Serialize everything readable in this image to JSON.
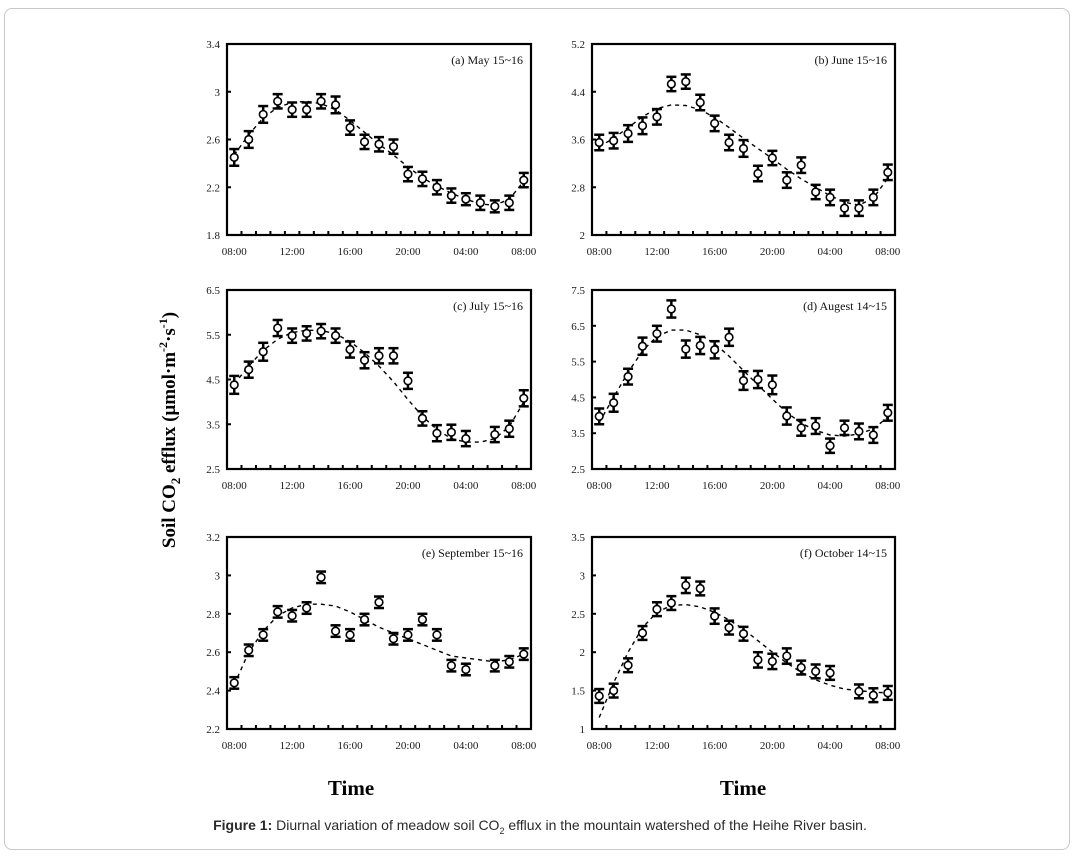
{
  "figure": {
    "caption_label": "Figure 1:",
    "caption_text_pre": " Diurnal variation of meadow soil CO",
    "caption_sub": "2",
    "caption_text_post": " efflux in the mountain watershed of the Heihe River basin.",
    "ylabel_main": "Soil CO",
    "ylabel_sub": "2",
    "ylabel_rest": " efflux (μmol·m",
    "ylabel_sup1": "-2",
    "ylabel_mid": "·s",
    "ylabel_sup2": "-1",
    "ylabel_end": ")",
    "xlabel_left": "Time",
    "xlabel_right": "Time"
  },
  "chart_data": [
    {
      "type": "scatter",
      "title": "(a) May 15~16",
      "xlabel": "Time",
      "ylabel": "Soil CO2 efflux (μmol·m-2·s-1)",
      "x_tick_labels": [
        "08:00",
        "12:00",
        "16:00",
        "20:00",
        "04:00",
        "08:00"
      ],
      "n_points": 21,
      "ylim": [
        1.8,
        3.4
      ],
      "yticks": [
        1.8,
        2.2,
        2.6,
        3,
        3.4
      ],
      "ytick_labels": [
        "1.8",
        "2.2",
        "2.6",
        "3",
        "3.4"
      ],
      "series": [
        {
          "name": "observed",
          "marker": "open-circle",
          "error_bars": true,
          "values": [
            2.45,
            2.6,
            2.81,
            2.92,
            2.85,
            2.85,
            2.92,
            2.89,
            2.7,
            2.58,
            2.56,
            2.54,
            2.31,
            2.27,
            2.2,
            2.13,
            2.1,
            2.07,
            2.04,
            2.07,
            2.26
          ],
          "errors": [
            0.07,
            0.07,
            0.07,
            0.06,
            0.06,
            0.06,
            0.06,
            0.07,
            0.06,
            0.06,
            0.06,
            0.06,
            0.06,
            0.06,
            0.06,
            0.06,
            0.05,
            0.06,
            0.05,
            0.06,
            0.06
          ]
        },
        {
          "name": "fit",
          "style": "dashed",
          "values": [
            2.47,
            2.64,
            2.78,
            2.87,
            2.91,
            2.92,
            2.9,
            2.85,
            2.76,
            2.66,
            2.56,
            2.47,
            2.37,
            2.28,
            2.21,
            2.15,
            2.1,
            2.06,
            2.05,
            2.1,
            2.25
          ]
        }
      ]
    },
    {
      "type": "scatter",
      "title": "(b) June 15~16",
      "xlabel": "Time",
      "ylabel": "Soil CO2 efflux (μmol·m-2·s-1)",
      "x_tick_labels": [
        "08:00",
        "12:00",
        "16:00",
        "20:00",
        "04:00",
        "08:00"
      ],
      "n_points": 21,
      "ylim": [
        2,
        5.2
      ],
      "yticks": [
        2,
        2.8,
        3.6,
        4.4,
        5.2
      ],
      "ytick_labels": [
        "2",
        "2.8",
        "3.6",
        "4.4",
        "5.2"
      ],
      "series": [
        {
          "name": "observed",
          "marker": "open-circle",
          "error_bars": true,
          "values": [
            3.55,
            3.58,
            3.7,
            3.83,
            3.98,
            4.53,
            4.57,
            4.22,
            3.87,
            3.55,
            3.45,
            3.03,
            3.29,
            2.92,
            3.17,
            2.72,
            2.63,
            2.45,
            2.45,
            2.63,
            3.05
          ],
          "errors": [
            0.13,
            0.13,
            0.14,
            0.14,
            0.13,
            0.12,
            0.12,
            0.13,
            0.13,
            0.13,
            0.14,
            0.13,
            0.12,
            0.13,
            0.13,
            0.12,
            0.13,
            0.13,
            0.13,
            0.13,
            0.13
          ]
        },
        {
          "name": "fit",
          "style": "dashed",
          "values": [
            3.48,
            3.62,
            3.8,
            3.98,
            4.12,
            4.18,
            4.17,
            4.1,
            3.97,
            3.8,
            3.62,
            3.45,
            3.28,
            3.1,
            2.94,
            2.8,
            2.66,
            2.55,
            2.5,
            2.62,
            2.95
          ]
        }
      ]
    },
    {
      "type": "scatter",
      "title": "(c) July 15~16",
      "xlabel": "Time",
      "ylabel": "Soil CO2 efflux (μmol·m-2·s-1)",
      "x_tick_labels": [
        "08:00",
        "12:00",
        "16:00",
        "20:00",
        "04:00",
        "08:00"
      ],
      "n_points": 21,
      "ylim": [
        2.5,
        6.5
      ],
      "yticks": [
        2.5,
        3.5,
        4.5,
        5.5,
        6.5
      ],
      "ytick_labels": [
        "2.5",
        "3.5",
        "4.5",
        "5.5",
        "6.5"
      ],
      "series": [
        {
          "name": "observed",
          "marker": "open-circle",
          "error_bars": true,
          "values": [
            4.38,
            4.72,
            5.12,
            5.65,
            5.48,
            5.53,
            5.58,
            5.48,
            5.17,
            4.93,
            5.03,
            5.03,
            4.47,
            3.63,
            3.3,
            3.32,
            3.18,
            null,
            3.27,
            3.4,
            4.08
          ],
          "errors": [
            0.2,
            0.18,
            0.2,
            0.18,
            0.16,
            0.16,
            0.16,
            0.16,
            0.18,
            0.18,
            0.17,
            0.17,
            0.18,
            0.16,
            0.18,
            0.17,
            0.17,
            null,
            0.17,
            0.18,
            0.18
          ]
        },
        {
          "name": "fit",
          "style": "dashed",
          "values": [
            4.4,
            4.8,
            5.15,
            5.4,
            5.55,
            5.6,
            5.6,
            5.52,
            5.35,
            5.1,
            4.8,
            4.45,
            4.05,
            3.68,
            3.38,
            3.18,
            3.1,
            3.1,
            3.18,
            3.45,
            4.0
          ]
        }
      ]
    },
    {
      "type": "scatter",
      "title": "(d) Augest 14~15",
      "xlabel": "Time",
      "ylabel": "Soil CO2 efflux (μmol·m-2·s-1)",
      "x_tick_labels": [
        "08:00",
        "12:00",
        "16:00",
        "20:00",
        "04:00",
        "08:00"
      ],
      "n_points": 21,
      "ylim": [
        2.5,
        7.5
      ],
      "yticks": [
        2.5,
        3.5,
        4.5,
        5.5,
        6.5,
        7.5
      ],
      "ytick_labels": [
        "2.5",
        "3.5",
        "4.5",
        "5.5",
        "6.5",
        "7.5"
      ],
      "series": [
        {
          "name": "observed",
          "marker": "open-circle",
          "error_bars": true,
          "values": [
            3.97,
            4.35,
            5.08,
            5.93,
            6.28,
            6.97,
            5.85,
            5.95,
            5.83,
            6.18,
            4.97,
            5.0,
            4.85,
            3.98,
            3.65,
            3.7,
            3.15,
            3.65,
            3.55,
            3.45,
            4.07
          ],
          "errors": [
            0.22,
            0.25,
            0.22,
            0.24,
            0.22,
            0.24,
            0.24,
            0.24,
            0.24,
            0.24,
            0.26,
            0.24,
            0.26,
            0.24,
            0.22,
            0.22,
            0.2,
            0.2,
            0.22,
            0.22,
            0.22
          ]
        },
        {
          "name": "fit",
          "style": "dashed",
          "values": [
            3.8,
            4.5,
            5.2,
            5.8,
            6.2,
            6.38,
            6.38,
            6.25,
            6.0,
            5.65,
            5.25,
            4.85,
            4.45,
            4.08,
            3.78,
            3.58,
            3.45,
            3.42,
            3.48,
            3.62,
            3.95
          ]
        }
      ]
    },
    {
      "type": "scatter",
      "title": "(e) September 15~16",
      "xlabel": "Time",
      "ylabel": "Soil CO2 efflux (μmol·m-2·s-1)",
      "x_tick_labels": [
        "08:00",
        "12:00",
        "16:00",
        "20:00",
        "04:00",
        "08:00"
      ],
      "n_points": 21,
      "ylim": [
        2.2,
        3.2
      ],
      "yticks": [
        2.2,
        2.4,
        2.6,
        2.8,
        3,
        3.2
      ],
      "ytick_labels": [
        "2.2",
        "2.4",
        "2.6",
        "2.8",
        "3",
        "3.2"
      ],
      "series": [
        {
          "name": "observed",
          "marker": "open-circle",
          "error_bars": true,
          "values": [
            2.44,
            2.61,
            2.69,
            2.81,
            2.79,
            2.83,
            2.99,
            2.71,
            2.69,
            2.77,
            2.86,
            2.67,
            2.69,
            2.77,
            2.69,
            2.53,
            2.51,
            null,
            2.53,
            2.55,
            2.59
          ],
          "errors": [
            0.03,
            0.03,
            0.03,
            0.03,
            0.03,
            0.03,
            0.03,
            0.03,
            0.03,
            0.03,
            0.03,
            0.03,
            0.03,
            0.03,
            0.03,
            0.03,
            0.03,
            null,
            0.03,
            0.03,
            0.03
          ]
        },
        {
          "name": "fit",
          "style": "dashed",
          "values": [
            2.43,
            2.6,
            2.71,
            2.79,
            2.83,
            2.85,
            2.85,
            2.84,
            2.81,
            2.77,
            2.73,
            2.7,
            2.67,
            2.64,
            2.61,
            2.58,
            2.57,
            2.56,
            2.55,
            2.56,
            2.59
          ]
        }
      ]
    },
    {
      "type": "scatter",
      "title": "(f) October  14~15",
      "xlabel": "Time",
      "ylabel": "Soil CO2 efflux (μmol·m-2·s-1)",
      "x_tick_labels": [
        "08:00",
        "12:00",
        "16:00",
        "20:00",
        "04:00",
        "08:00"
      ],
      "n_points": 21,
      "ylim": [
        1,
        3.5
      ],
      "yticks": [
        1,
        1.5,
        2,
        2.5,
        3,
        3.5
      ],
      "ytick_labels": [
        "1",
        "1.5",
        "2",
        "2.5",
        "3",
        "3.5"
      ],
      "series": [
        {
          "name": "observed",
          "marker": "open-circle",
          "error_bars": true,
          "values": [
            1.43,
            1.5,
            1.83,
            2.25,
            2.56,
            2.64,
            2.87,
            2.83,
            2.47,
            2.32,
            2.24,
            1.9,
            1.88,
            1.95,
            1.8,
            1.75,
            1.73,
            null,
            1.49,
            1.44,
            1.47
          ],
          "errors": [
            0.09,
            0.09,
            0.09,
            0.09,
            0.09,
            0.09,
            0.1,
            0.09,
            0.1,
            0.09,
            0.09,
            0.1,
            0.1,
            0.1,
            0.09,
            0.09,
            0.09,
            null,
            0.09,
            0.09,
            0.09
          ]
        },
        {
          "name": "fit",
          "style": "dashed",
          "values": [
            1.15,
            1.6,
            2.0,
            2.32,
            2.52,
            2.61,
            2.62,
            2.59,
            2.52,
            2.42,
            2.3,
            2.15,
            2.0,
            1.86,
            1.74,
            1.64,
            1.57,
            1.52,
            1.5,
            1.48,
            1.47
          ]
        }
      ]
    }
  ]
}
